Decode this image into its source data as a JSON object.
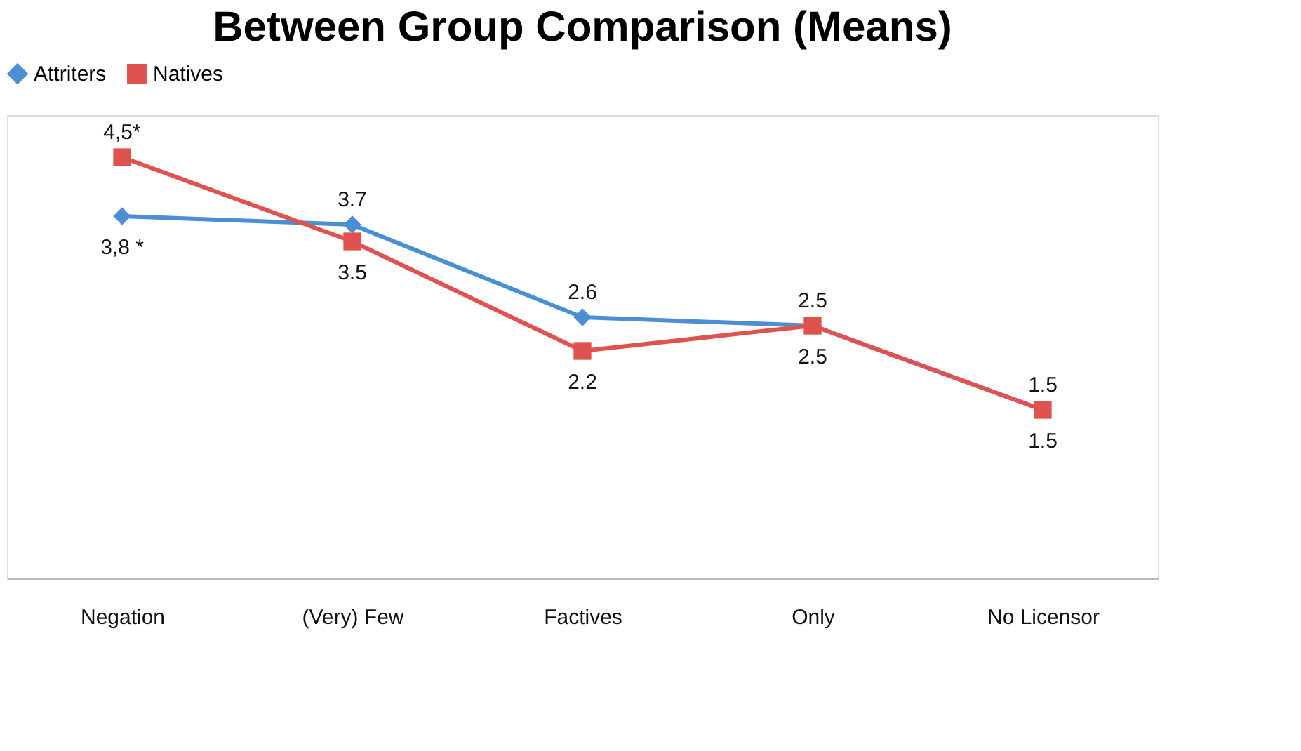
{
  "chart_data": {
    "type": "line",
    "title": "Between Group Comparison (Means)",
    "categories": [
      "Negation",
      "(Very) Few",
      "Factives",
      "Only",
      "No Licensor"
    ],
    "series": [
      {
        "name": "Attriters",
        "color": "#4a8fd4",
        "marker": "diamond",
        "values": [
          3.8,
          3.7,
          2.6,
          2.5,
          1.5
        ],
        "value_labels": [
          "3,8 *",
          "3.7",
          "2.6",
          "2.5",
          "1.5"
        ]
      },
      {
        "name": "Natives",
        "color": "#e0524f",
        "marker": "square",
        "values": [
          4.5,
          3.5,
          2.2,
          2.5,
          1.5
        ],
        "value_labels": [
          "4,5*",
          "3.5",
          "2.2",
          "2.5",
          "1.5"
        ]
      }
    ],
    "legend": "top",
    "grid": false
  }
}
